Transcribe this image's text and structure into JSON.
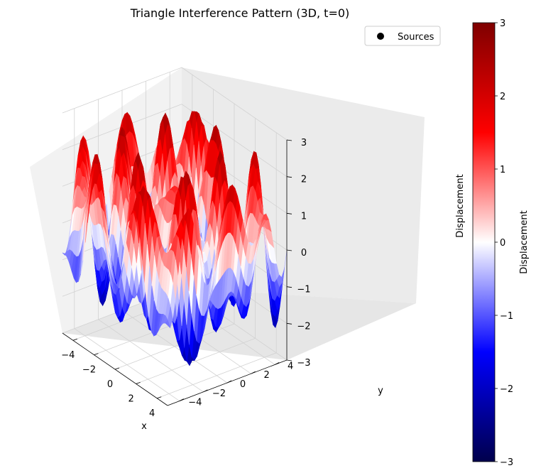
{
  "chart_data": {
    "type": "surface3d",
    "title": "Triangle Interference Pattern (3D, t=0)",
    "xlabel": "x",
    "ylabel": "y",
    "zlabel": "Displacement",
    "xlim": [
      -5,
      5
    ],
    "ylim": [
      -5,
      5
    ],
    "zlim": [
      -3,
      3
    ],
    "xticks": [
      -4,
      -2,
      0,
      2,
      4
    ],
    "yticks": [
      -4,
      -2,
      0,
      2,
      4
    ],
    "zticks": [
      -3,
      -2,
      -1,
      0,
      1,
      2,
      3
    ],
    "grid": true,
    "legend": {
      "entries": [
        "Sources"
      ],
      "placement": "top-right"
    },
    "colormap": {
      "name": "seismic",
      "colors": [
        "#00004c",
        "#0000ff",
        "#ffffff",
        "#ff0000",
        "#7f0000"
      ]
    },
    "colorbar": {
      "label": "Displacement",
      "ticks": [
        -3,
        -2,
        -1,
        0,
        1,
        2,
        3
      ],
      "range": [
        -3,
        3
      ]
    }
  }
}
